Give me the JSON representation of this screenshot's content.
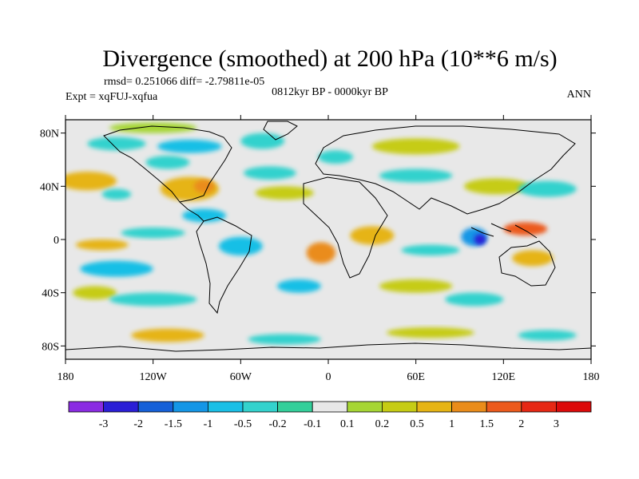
{
  "chart_data": {
    "type": "heatmap",
    "title": "Divergence (smoothed) at 200 hPa (10**6 m/s)",
    "stats_line": "rmsd= 0.251066 diff= -2.79811e-05",
    "experiment_label": "Expt = xqFUJ-xqfua",
    "period_label": "0812kyr BP - 0000kyr BP",
    "season_label": "ANN",
    "x_ticks": [
      {
        "value": -180,
        "label": "180"
      },
      {
        "value": -120,
        "label": "120W"
      },
      {
        "value": -60,
        "label": "60W"
      },
      {
        "value": 0,
        "label": "0"
      },
      {
        "value": 60,
        "label": "60E"
      },
      {
        "value": 120,
        "label": "120E"
      },
      {
        "value": 180,
        "label": "180"
      }
    ],
    "y_ticks": [
      {
        "value": 80,
        "label": "80N"
      },
      {
        "value": 40,
        "label": "40N"
      },
      {
        "value": 0,
        "label": "0"
      },
      {
        "value": -40,
        "label": "40S"
      },
      {
        "value": -80,
        "label": "80S"
      }
    ],
    "x_range": [
      -180,
      180
    ],
    "y_range": [
      -90,
      90
    ],
    "colorbar": {
      "labels": [
        "-3",
        "-2",
        "-1.5",
        "-1",
        "-0.5",
        "-0.2",
        "-0.1",
        "0.1",
        "0.2",
        "0.5",
        "1",
        "1.5",
        "2",
        "3"
      ],
      "colors": [
        "#8a2be2",
        "#2a1ed6",
        "#1560d8",
        "#1496e6",
        "#19bfe6",
        "#33d2cd",
        "#33cf9a",
        "#e8e8e8",
        "#a6d634",
        "#c6cc14",
        "#e6b414",
        "#ea8c1a",
        "#ec5a1c",
        "#e62814",
        "#dc0a0a"
      ]
    },
    "fields": [
      {
        "name": "arctic-positive-north-america",
        "lon": -120,
        "lat": 84,
        "rlon": 30,
        "rlat": 4,
        "class": 8
      },
      {
        "name": "arctic-negative-north-pacific",
        "lon": -145,
        "lat": 72,
        "rlon": 20,
        "rlat": 5,
        "class": 5
      },
      {
        "name": "canada-negative",
        "lon": -95,
        "lat": 70,
        "rlon": 22,
        "rlat": 5,
        "class": 4
      },
      {
        "name": "canada-negative-south",
        "lon": -110,
        "lat": 58,
        "rlon": 15,
        "rlat": 5,
        "class": 5
      },
      {
        "name": "north-atlantic-negative",
        "lon": -45,
        "lat": 74,
        "rlon": 15,
        "rlat": 6,
        "class": 5
      },
      {
        "name": "europe-negative",
        "lon": 5,
        "lat": 62,
        "rlon": 12,
        "rlat": 5,
        "class": 5
      },
      {
        "name": "siberia-positive",
        "lon": 60,
        "lat": 70,
        "rlon": 30,
        "rlat": 6,
        "class": 9
      },
      {
        "name": "north-pacific-positive",
        "lon": -165,
        "lat": 44,
        "rlon": 20,
        "rlat": 7,
        "class": 10
      },
      {
        "name": "north-pacific-negative",
        "lon": -145,
        "lat": 34,
        "rlon": 10,
        "rlat": 4,
        "class": 5
      },
      {
        "name": "us-positive",
        "lon": -95,
        "lat": 38,
        "rlon": 20,
        "rlat": 9,
        "class": 10
      },
      {
        "name": "us-strong-positive",
        "lon": -85,
        "lat": 40,
        "rlon": 7,
        "rlat": 5,
        "class": 11
      },
      {
        "name": "atlantic-negative-north",
        "lon": -40,
        "lat": 50,
        "rlon": 18,
        "rlat": 5,
        "class": 5
      },
      {
        "name": "atlantic-positive-mid",
        "lon": -30,
        "lat": 35,
        "rlon": 20,
        "rlat": 5,
        "class": 9
      },
      {
        "name": "asia-negative-band",
        "lon": 60,
        "lat": 48,
        "rlon": 25,
        "rlat": 5,
        "class": 5
      },
      {
        "name": "east-asia-positive",
        "lon": 115,
        "lat": 40,
        "rlon": 22,
        "rlat": 6,
        "class": 9
      },
      {
        "name": "asia-negative-west-pacific",
        "lon": 150,
        "lat": 38,
        "rlon": 20,
        "rlat": 6,
        "class": 5
      },
      {
        "name": "central-america-negative",
        "lon": -85,
        "lat": 18,
        "rlon": 15,
        "rlat": 5,
        "class": 4
      },
      {
        "name": "equatorial-pacific-negative",
        "lon": -120,
        "lat": 5,
        "rlon": 22,
        "rlat": 4,
        "class": 5
      },
      {
        "name": "equatorial-pacific-positive",
        "lon": -155,
        "lat": -4,
        "rlon": 18,
        "rlat": 4,
        "class": 10
      },
      {
        "name": "south-america-negative",
        "lon": -60,
        "lat": -5,
        "rlon": 15,
        "rlat": 7,
        "class": 4
      },
      {
        "name": "south-atlantic-positive",
        "lon": -5,
        "lat": -10,
        "rlon": 10,
        "rlat": 8,
        "class": 11
      },
      {
        "name": "africa-positive",
        "lon": 30,
        "lat": 3,
        "rlon": 15,
        "rlat": 7,
        "class": 10
      },
      {
        "name": "indian-ocean-negative",
        "lon": 70,
        "lat": -8,
        "rlon": 20,
        "rlat": 4,
        "class": 5
      },
      {
        "name": "maritime-continent-negative",
        "lon": 100,
        "lat": 2,
        "rlon": 9,
        "rlat": 7,
        "class": 3
      },
      {
        "name": "maritime-continent-core",
        "lon": 104,
        "lat": 0,
        "rlon": 4,
        "rlat": 4,
        "class": 1
      },
      {
        "name": "west-pacific-positive",
        "lon": 135,
        "lat": 8,
        "rlon": 15,
        "rlat": 5,
        "class": 12
      },
      {
        "name": "australia-positive",
        "lon": 140,
        "lat": -14,
        "rlon": 14,
        "rlat": 6,
        "class": 10
      },
      {
        "name": "south-pacific-negative",
        "lon": -145,
        "lat": -22,
        "rlon": 25,
        "rlat": 6,
        "class": 4
      },
      {
        "name": "south-pacific-positive-lower",
        "lon": -160,
        "lat": -40,
        "rlon": 15,
        "rlat": 5,
        "class": 9
      },
      {
        "name": "southern-ocean-negative",
        "lon": -120,
        "lat": -45,
        "rlon": 30,
        "rlat": 5,
        "class": 5
      },
      {
        "name": "south-atlantic-negative",
        "lon": -20,
        "lat": -35,
        "rlon": 15,
        "rlat": 5,
        "class": 4
      },
      {
        "name": "south-indian-positive",
        "lon": 60,
        "lat": -35,
        "rlon": 25,
        "rlat": 5,
        "class": 9
      },
      {
        "name": "south-indian-negative",
        "lon": 100,
        "lat": -45,
        "rlon": 20,
        "rlat": 5,
        "class": 5
      },
      {
        "name": "antarctic-positive-pacific",
        "lon": -110,
        "lat": -72,
        "rlon": 25,
        "rlat": 5,
        "class": 10
      },
      {
        "name": "antarctic-negative-atlantic",
        "lon": -30,
        "lat": -75,
        "rlon": 25,
        "rlat": 4,
        "class": 5
      },
      {
        "name": "antarctic-positive-indian",
        "lon": 70,
        "lat": -70,
        "rlon": 30,
        "rlat": 4,
        "class": 9
      },
      {
        "name": "antarctic-negative-pacific",
        "lon": 150,
        "lat": -72,
        "rlon": 20,
        "rlat": 4,
        "class": 5
      }
    ]
  }
}
